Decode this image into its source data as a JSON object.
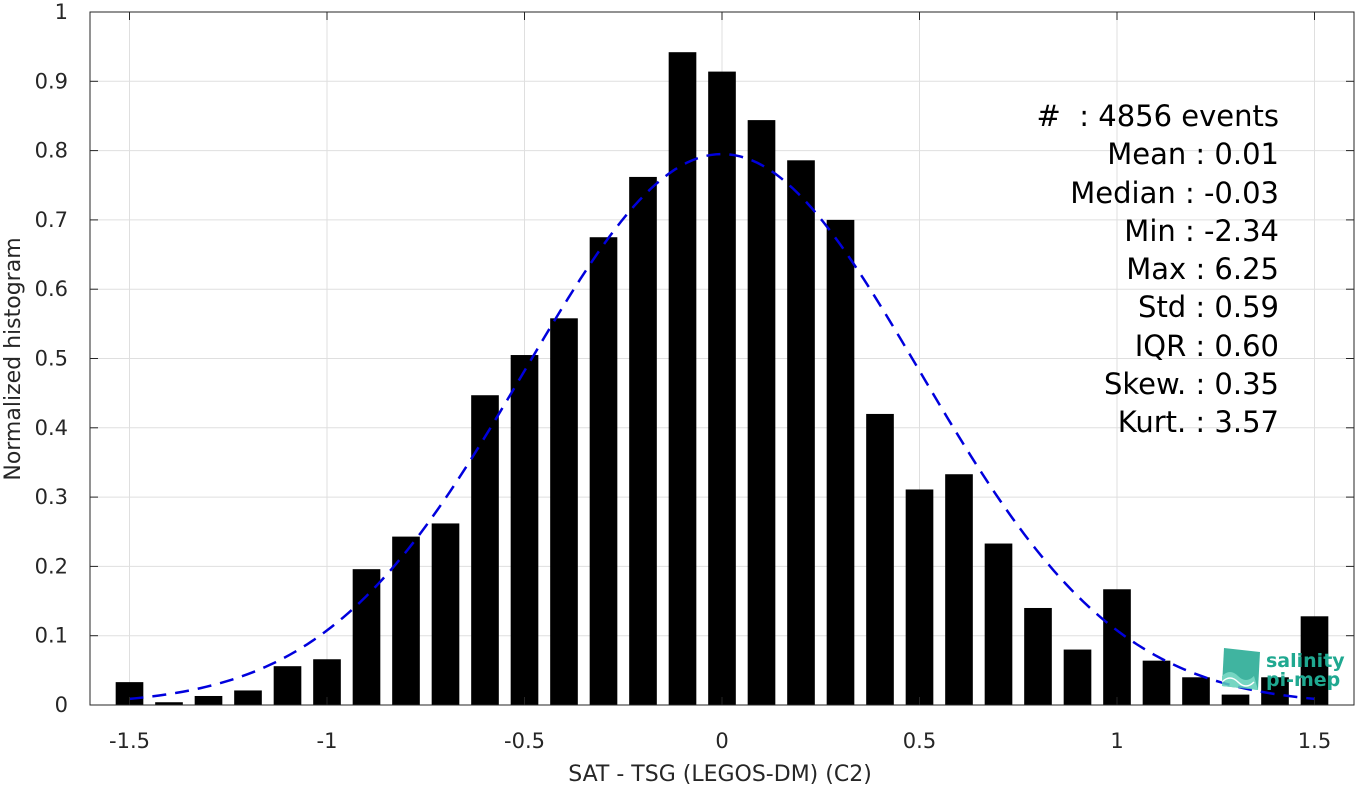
{
  "chart_data": {
    "type": "bar",
    "xlabel": "SAT - TSG (LEGOS-DM) (C2)",
    "ylabel": "Normalized histogram",
    "xlim": [
      -1.6,
      1.6
    ],
    "ylim": [
      0,
      1
    ],
    "grid": true,
    "xticks": [
      "-1.5",
      "-1",
      "-0.5",
      "0",
      "0.5",
      "1",
      "1.5"
    ],
    "xtick_values": [
      -1.5,
      -1,
      -0.5,
      0,
      0.5,
      1,
      1.5
    ],
    "yticks": [
      "0",
      "0.1",
      "0.2",
      "0.3",
      "0.4",
      "0.5",
      "0.6",
      "0.7",
      "0.8",
      "0.9",
      "1"
    ],
    "ytick_values": [
      0,
      0.1,
      0.2,
      0.3,
      0.4,
      0.5,
      0.6,
      0.7,
      0.8,
      0.9,
      1.0
    ],
    "bar_width": 0.07,
    "x": [
      -1.5,
      -1.4,
      -1.3,
      -1.2,
      -1.1,
      -1.0,
      -0.9,
      -0.8,
      -0.7,
      -0.6,
      -0.5,
      -0.4,
      -0.3,
      -0.2,
      -0.1,
      0.0,
      0.1,
      0.2,
      0.3,
      0.4,
      0.5,
      0.6,
      0.7,
      0.8,
      0.9,
      1.0,
      1.1,
      1.2,
      1.3,
      1.4,
      1.5
    ],
    "values": [
      0.033,
      0.004,
      0.013,
      0.021,
      0.056,
      0.066,
      0.196,
      0.243,
      0.262,
      0.447,
      0.505,
      0.558,
      0.675,
      0.762,
      0.942,
      0.914,
      0.844,
      0.786,
      0.7,
      0.42,
      0.311,
      0.333,
      0.233,
      0.14,
      0.08,
      0.167,
      0.064,
      0.04,
      0.015,
      0.04,
      0.128
    ],
    "fit_curve": {
      "type": "gaussian",
      "mean": 0.0,
      "std": 0.5,
      "peak": 0.795,
      "x_range": [
        -1.5,
        1.5
      ],
      "color": "#0000dd",
      "style": "dashed"
    },
    "bar_color": "#000000",
    "stats": [
      "#  : 4856 events",
      "Mean : 0.01",
      "Median : -0.03",
      "Min : -2.34",
      "Max : 6.25",
      "Std : 0.59",
      "IQR : 0.60",
      "Skew. : 0.35",
      "Kurt. : 3.57"
    ],
    "stats_placement": "top-right",
    "logo": {
      "text_line1": "salinity",
      "text_line2": "pi-mep",
      "color": "#1fa890"
    }
  }
}
